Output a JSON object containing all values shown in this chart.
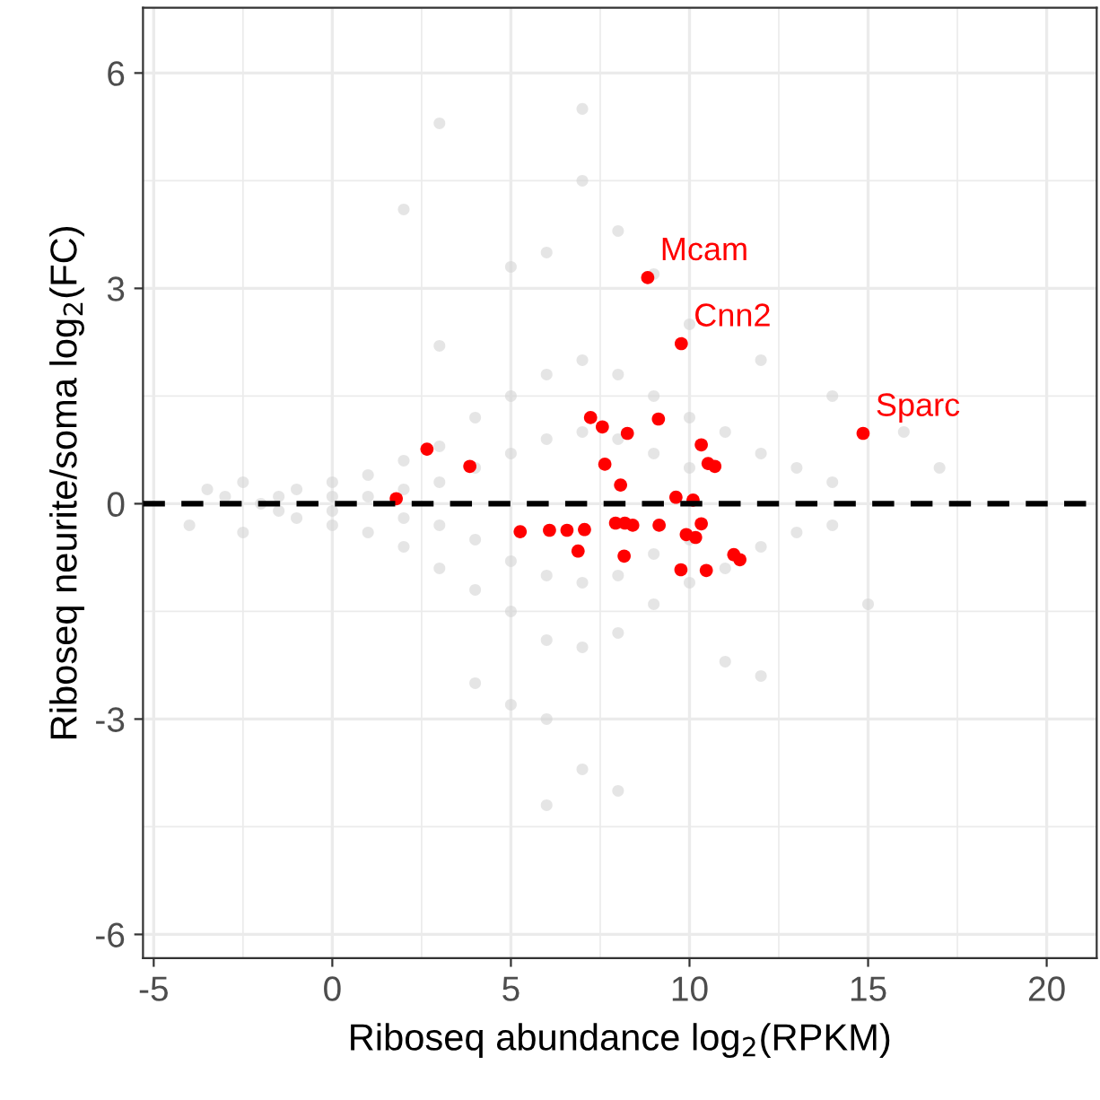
{
  "chart_data": {
    "type": "scatter",
    "xlabel": "Riboseq abundance log$_{2}$(RPKM)",
    "ylabel": "Riboseq neurite/soma log$_{2}$(FC)",
    "xlim": [
      -5.3,
      21.4
    ],
    "ylim": [
      -6.33,
      6.91
    ],
    "xticks": [
      -5,
      0,
      5,
      10,
      15,
      20
    ],
    "yticks": [
      -6,
      -3,
      0,
      3,
      6
    ],
    "grid": true,
    "marker": "circle",
    "series": [
      {
        "color": "#d3d3d3",
        "x": [
          -2,
          -1.5,
          -1.5,
          -1,
          -1,
          0,
          0,
          0,
          0,
          1,
          1,
          1,
          2,
          2,
          2,
          2,
          3,
          3,
          3,
          3,
          4,
          4,
          4,
          4,
          5,
          5,
          5,
          5,
          6,
          6,
          6,
          6,
          7,
          7,
          7,
          7,
          8,
          8,
          8,
          8,
          9,
          9,
          9,
          9,
          10,
          10,
          10,
          10,
          11,
          11,
          12,
          12,
          13,
          13,
          14,
          14,
          -2.5,
          -2.5,
          -3,
          5,
          6,
          7,
          8,
          6,
          5,
          7,
          4,
          3,
          10,
          12,
          14,
          16,
          17,
          15,
          3,
          7,
          2,
          9,
          11,
          12,
          6,
          8,
          -3.5,
          -4
        ],
        "values": [
          0,
          0.1,
          -0.1,
          0.2,
          -0.2,
          0.3,
          -0.3,
          0.1,
          -0.1,
          0.4,
          -0.4,
          0.1,
          0.6,
          -0.6,
          0.2,
          -0.2,
          0.8,
          -0.9,
          0.3,
          -0.3,
          1.2,
          -1.2,
          0.5,
          -0.5,
          1.5,
          -1.5,
          0.7,
          -0.8,
          1.8,
          -1.9,
          0.9,
          -1.0,
          2.0,
          -2.0,
          1.0,
          -1.1,
          1.8,
          -1.8,
          0.9,
          -1.0,
          1.5,
          -1.4,
          0.7,
          -0.7,
          1.2,
          -1.1,
          0.5,
          -0.5,
          1.0,
          -0.9,
          0.7,
          -0.6,
          0.5,
          -0.4,
          0.3,
          -0.3,
          0.3,
          -0.4,
          0.1,
          3.3,
          3.5,
          4.5,
          3.8,
          -3.0,
          -2.8,
          -3.7,
          -2.5,
          2.2,
          2.5,
          2.0,
          1.5,
          1.0,
          0.5,
          -1.4,
          5.3,
          5.5,
          4.1,
          3.2,
          -2.2,
          -2.4,
          -4.2,
          -4.0,
          0.2,
          -0.3
        ]
      },
      {
        "color": "#ff0000",
        "x": [
          8.83,
          9.77,
          14.86,
          2.65,
          3.85,
          1.79,
          7.23,
          7.56,
          9.13,
          8.26,
          10.33,
          10.52,
          10.71,
          7.63,
          8.07,
          9.62,
          10.1,
          5.26,
          6.08,
          6.57,
          7.06,
          6.88,
          7.93,
          8.19,
          8.41,
          9.15,
          8.17,
          10.33,
          9.91,
          10.17,
          9.76,
          10.47,
          11.24,
          11.41
        ],
        "values": [
          3.15,
          2.23,
          0.98,
          0.76,
          0.52,
          0.07,
          1.2,
          1.07,
          1.18,
          0.98,
          0.82,
          0.56,
          0.52,
          0.55,
          0.26,
          0.09,
          0.05,
          -0.39,
          -0.37,
          -0.37,
          -0.36,
          -0.66,
          -0.27,
          -0.27,
          -0.3,
          -0.3,
          -0.73,
          -0.28,
          -0.43,
          -0.47,
          -0.92,
          -0.93,
          -0.71,
          -0.78
        ]
      }
    ],
    "annotations": [
      {
        "text": "Mcam",
        "x": 8.83,
        "y": 3.15
      },
      {
        "text": "Cnn2",
        "x": 9.77,
        "y": 2.23
      },
      {
        "text": "Sparc",
        "x": 14.86,
        "y": 0.98
      }
    ],
    "ref_lines": [
      {
        "axis": "y",
        "value": 0,
        "color": "#000000",
        "line_style": "dashed"
      }
    ]
  }
}
